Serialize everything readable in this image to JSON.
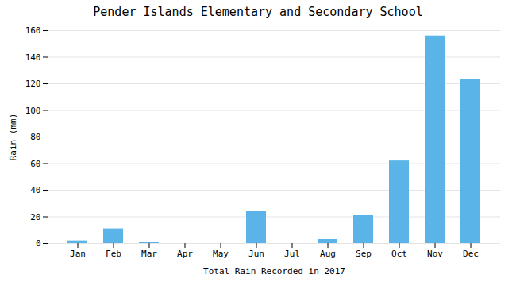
{
  "chart_data": {
    "type": "bar",
    "title": "Pender Islands Elementary and Secondary School",
    "xlabel": "Total Rain Recorded in 2017",
    "ylabel": "Rain (mm)",
    "categories": [
      "Jan",
      "Feb",
      "Mar",
      "Apr",
      "May",
      "Jun",
      "Jul",
      "Aug",
      "Sep",
      "Oct",
      "Nov",
      "Dec"
    ],
    "values": [
      2,
      11,
      1,
      0,
      0,
      24,
      0,
      3,
      21,
      62,
      156,
      123
    ],
    "color": "#5ab4e8",
    "ylim": [
      0,
      160
    ],
    "yticks": [
      0,
      20,
      40,
      60,
      80,
      100,
      120,
      140,
      160
    ],
    "grid": true
  }
}
